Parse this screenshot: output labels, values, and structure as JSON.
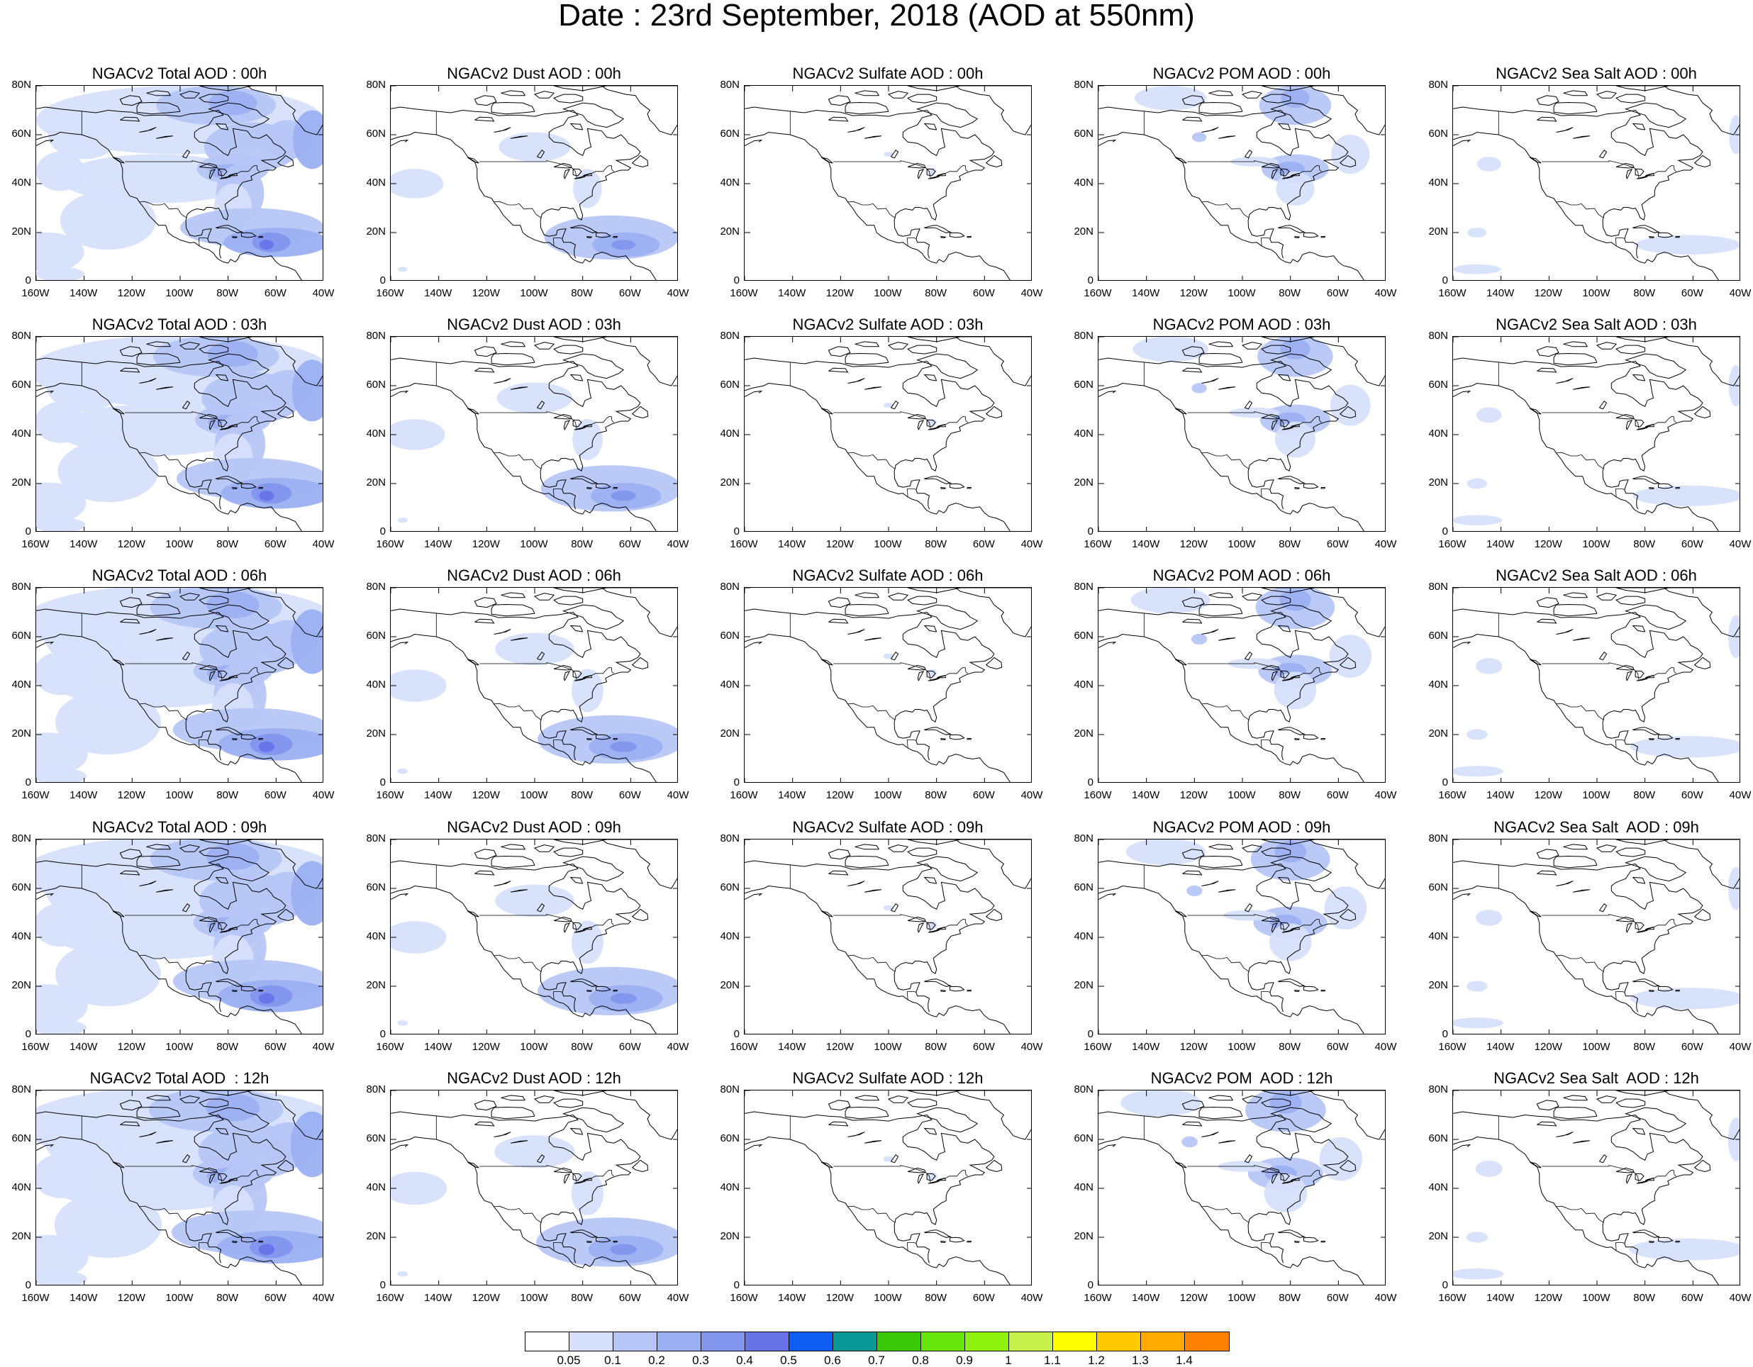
{
  "title": "Date : 23rd September, 2018 (AOD at 550nm)",
  "axis_ticks": {
    "y": [
      "80N",
      "60N",
      "40N",
      "20N",
      "0"
    ],
    "x": [
      "160W",
      "140W",
      "120W",
      "100W",
      "80W",
      "60W",
      "40W"
    ]
  },
  "extent": {
    "lon": [
      -160,
      -40
    ],
    "lat": [
      0,
      80
    ]
  },
  "rows": [
    {
      "hour": "00h",
      "titles": [
        "NGACv2 Total AOD : 00h",
        "NGACv2 Dust AOD : 00h",
        "NGACv2 Sulfate AOD : 00h",
        "NGACv2 POM AOD : 00h",
        "NGACv2 Sea Salt AOD : 00h"
      ]
    },
    {
      "hour": "03h",
      "titles": [
        "NGACv2 Total AOD : 03h",
        "NGACv2 Dust AOD : 03h",
        "NGACv2 Sulfate AOD : 03h",
        "NGACv2 POM AOD : 03h",
        "NGACv2 Sea Salt AOD : 03h"
      ]
    },
    {
      "hour": "06h",
      "titles": [
        "NGACv2 Total AOD : 06h",
        "NGACv2 Dust AOD : 06h",
        "NGACv2 Sulfate AOD : 06h",
        "NGACv2 POM AOD : 06h",
        "NGACv2 Sea Salt AOD : 06h"
      ]
    },
    {
      "hour": "09h",
      "titles": [
        "NGACv2 Total AOD : 09h",
        "NGACv2 Dust AOD : 09h",
        "NGACv2 Sulfate AOD : 09h",
        "NGACv2 POM AOD : 09h",
        "NGACv2 Sea Salt  AOD : 09h"
      ]
    },
    {
      "hour": "12h",
      "titles": [
        "NGACv2 Total AOD  : 12h",
        "NGACv2 Dust AOD : 12h",
        "NGACv2 Sulfate AOD : 12h",
        "NGACv2 POM  AOD : 12h",
        "NGACv2 Sea Salt  AOD : 12h"
      ]
    }
  ],
  "species": [
    "total",
    "dust",
    "sulfate",
    "pom",
    "seasalt"
  ],
  "colorbar": {
    "labels": [
      "0.05",
      "0.1",
      "0.2",
      "0.3",
      "0.4",
      "0.5",
      "0.6",
      "0.7",
      "0.8",
      "0.9",
      "1",
      "1.1",
      "1.2",
      "1.3",
      "1.4"
    ],
    "colors": [
      "#ffffff",
      "#d6e0fb",
      "#b6c6f6",
      "#9bb0f2",
      "#8296ee",
      "#6873e8",
      "#0f5cf0",
      "#0a9a96",
      "#3ac80a",
      "#66e60b",
      "#8ef20e",
      "#c6f04a",
      "#ffff00",
      "#ffc800",
      "#ffaa00",
      "#ff8200",
      "#ff2a10"
    ]
  }
}
